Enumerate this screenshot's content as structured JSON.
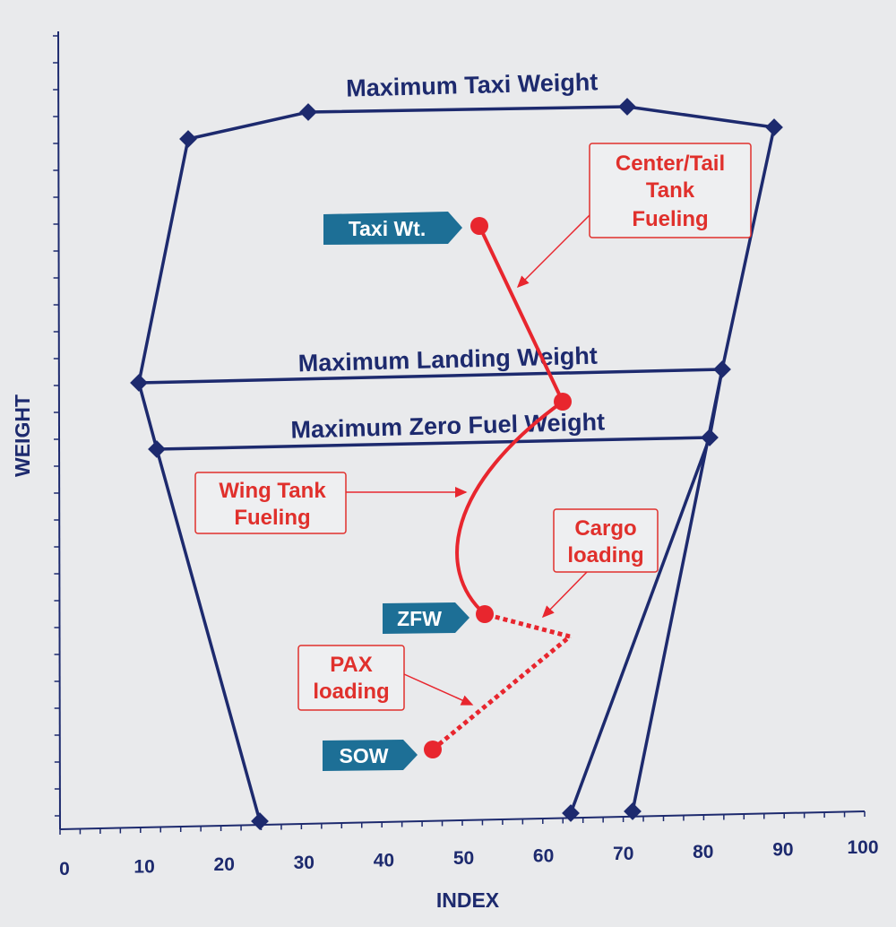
{
  "diagram": {
    "title": "",
    "axes": {
      "x_title": "INDEX",
      "y_title": "WEIGHT",
      "x_ticks": [
        "0",
        "10",
        "20",
        "30",
        "40",
        "50",
        "60",
        "70",
        "80",
        "90",
        "100"
      ]
    },
    "limit_lines": {
      "max_taxi": "Maximum Taxi Weight",
      "max_landing": "Maximum Landing Weight",
      "max_zero_fuel": "Maximum Zero Fuel Weight"
    },
    "tags": {
      "taxi": "Taxi Wt.",
      "zfw": "ZFW",
      "sow": "SOW"
    },
    "callouts": {
      "center_tail": [
        "Center/Tail",
        "Tank",
        "Fueling"
      ],
      "wing_tank": [
        "Wing Tank",
        "Fueling"
      ],
      "cargo": [
        "Cargo",
        "loading"
      ],
      "pax": [
        "PAX",
        "loading"
      ]
    }
  },
  "colors": {
    "envelope": "#1d2a6e",
    "path": "#e8262e",
    "tag_fill": "#1d6f96",
    "background": "#e9eaec"
  }
}
